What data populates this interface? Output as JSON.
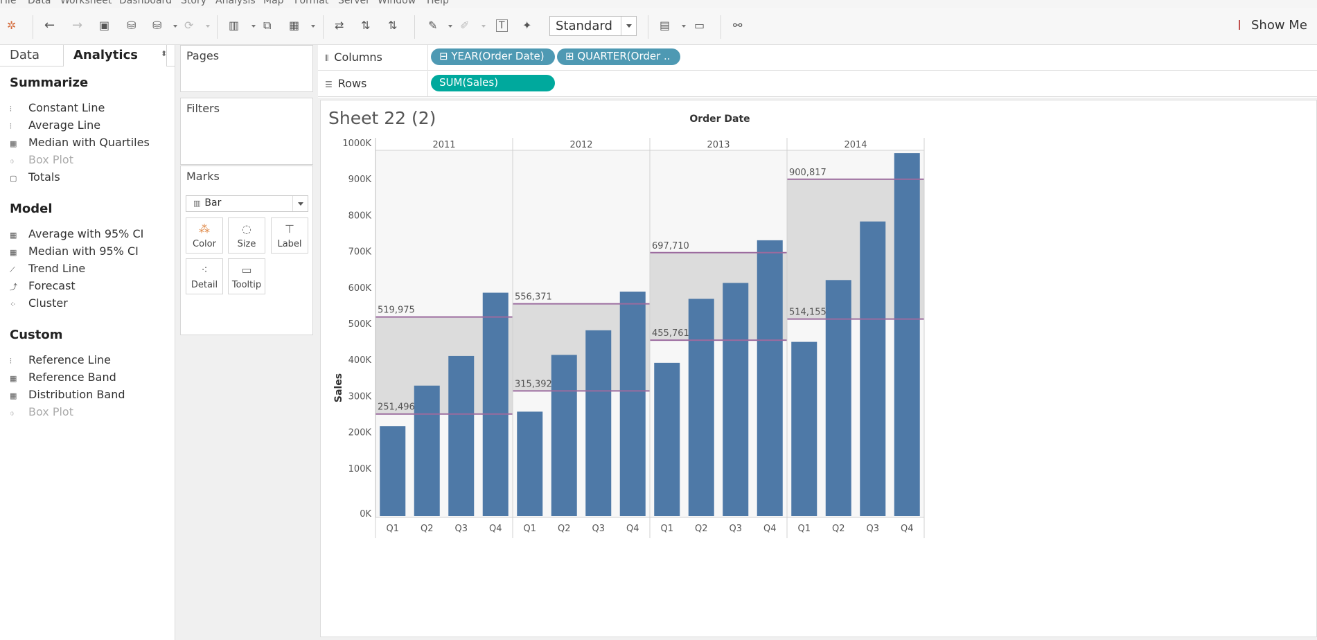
{
  "menu": [
    "File",
    "Data",
    "Worksheet",
    "Dashboard",
    "Story",
    "Analysis",
    "Map",
    "Format",
    "Server",
    "Window",
    "Help"
  ],
  "toolbar": {
    "fit_mode": "Standard",
    "show_me": "Show Me"
  },
  "left_panel": {
    "tabs": [
      "Data",
      "Analytics"
    ],
    "active_tab": "Analytics",
    "sections": [
      {
        "title": "Summarize",
        "items": [
          {
            "label": "Constant Line",
            "icon": "reference-line-icon",
            "enabled": true
          },
          {
            "label": "Average Line",
            "icon": "reference-line-icon",
            "enabled": true
          },
          {
            "label": "Median with Quartiles",
            "icon": "band-icon",
            "enabled": true
          },
          {
            "label": "Box Plot",
            "icon": "box-plot-icon",
            "enabled": false
          },
          {
            "label": "Totals",
            "icon": "totals-icon",
            "enabled": true
          }
        ]
      },
      {
        "title": "Model",
        "items": [
          {
            "label": "Average with 95% CI",
            "icon": "band-icon",
            "enabled": true
          },
          {
            "label": "Median with 95% CI",
            "icon": "band-icon",
            "enabled": true
          },
          {
            "label": "Trend Line",
            "icon": "trend-line-icon",
            "enabled": true
          },
          {
            "label": "Forecast",
            "icon": "forecast-icon",
            "enabled": true
          },
          {
            "label": "Cluster",
            "icon": "cluster-icon",
            "enabled": true
          }
        ]
      },
      {
        "title": "Custom",
        "items": [
          {
            "label": "Reference Line",
            "icon": "reference-line-icon",
            "enabled": true
          },
          {
            "label": "Reference Band",
            "icon": "band-icon",
            "enabled": true
          },
          {
            "label": "Distribution Band",
            "icon": "band-icon",
            "enabled": true
          },
          {
            "label": "Box Plot",
            "icon": "box-plot-icon",
            "enabled": false
          }
        ]
      }
    ]
  },
  "cards": {
    "pages": "Pages",
    "filters": "Filters",
    "marks": "Marks",
    "mark_type": "Bar",
    "buttons": [
      "Color",
      "Size",
      "Label",
      "Detail",
      "Tooltip"
    ]
  },
  "shelves": {
    "columns_label": "Columns",
    "rows_label": "Rows",
    "columns_pills": [
      "YEAR(Order Date)",
      "QUARTER(Order .."
    ],
    "rows_pills": [
      "SUM(Sales)"
    ]
  },
  "sheet": {
    "title": "Sheet 22 (2)"
  },
  "colors": {
    "bar": "#4e79a7",
    "band": "#dcdcdc",
    "ref_line": "#9b6b9e",
    "pill_dimension": "#4e99b3",
    "pill_measure": "#00a99d"
  },
  "chart_data": {
    "type": "bar",
    "title": "Order Date",
    "ylabel": "Sales",
    "ylim": [
      0,
      1000000
    ],
    "y_ticks": [
      0,
      100000,
      200000,
      300000,
      400000,
      500000,
      600000,
      700000,
      800000,
      900000,
      1000000
    ],
    "y_tick_labels": [
      "0K",
      "100K",
      "200K",
      "300K",
      "400K",
      "500K",
      "600K",
      "700K",
      "800K",
      "900K",
      "1000K"
    ],
    "panes": [
      {
        "year": "2011",
        "categories": [
          "Q1",
          "Q2",
          "Q3",
          "Q4"
        ],
        "values": [
          218000,
          330000,
          412000,
          587000
        ],
        "band": {
          "lower": 251496,
          "upper": 519975,
          "lower_label": "251,496",
          "upper_label": "519,975"
        }
      },
      {
        "year": "2012",
        "categories": [
          "Q1",
          "Q2",
          "Q3",
          "Q4"
        ],
        "values": [
          258000,
          415000,
          483000,
          590000
        ],
        "band": {
          "lower": 315392,
          "upper": 556371,
          "lower_label": "315,392",
          "upper_label": "556,371"
        }
      },
      {
        "year": "2013",
        "categories": [
          "Q1",
          "Q2",
          "Q3",
          "Q4"
        ],
        "values": [
          393000,
          570000,
          614000,
          732000
        ],
        "band": {
          "lower": 455761,
          "upper": 697710,
          "lower_label": "455,761",
          "upper_label": "697,710"
        }
      },
      {
        "year": "2014",
        "categories": [
          "Q1",
          "Q2",
          "Q3",
          "Q4"
        ],
        "values": [
          451000,
          622000,
          784000,
          973000
        ],
        "band": {
          "lower": 514155,
          "upper": 900817,
          "lower_label": "514,155",
          "upper_label": "900,817"
        }
      }
    ]
  }
}
